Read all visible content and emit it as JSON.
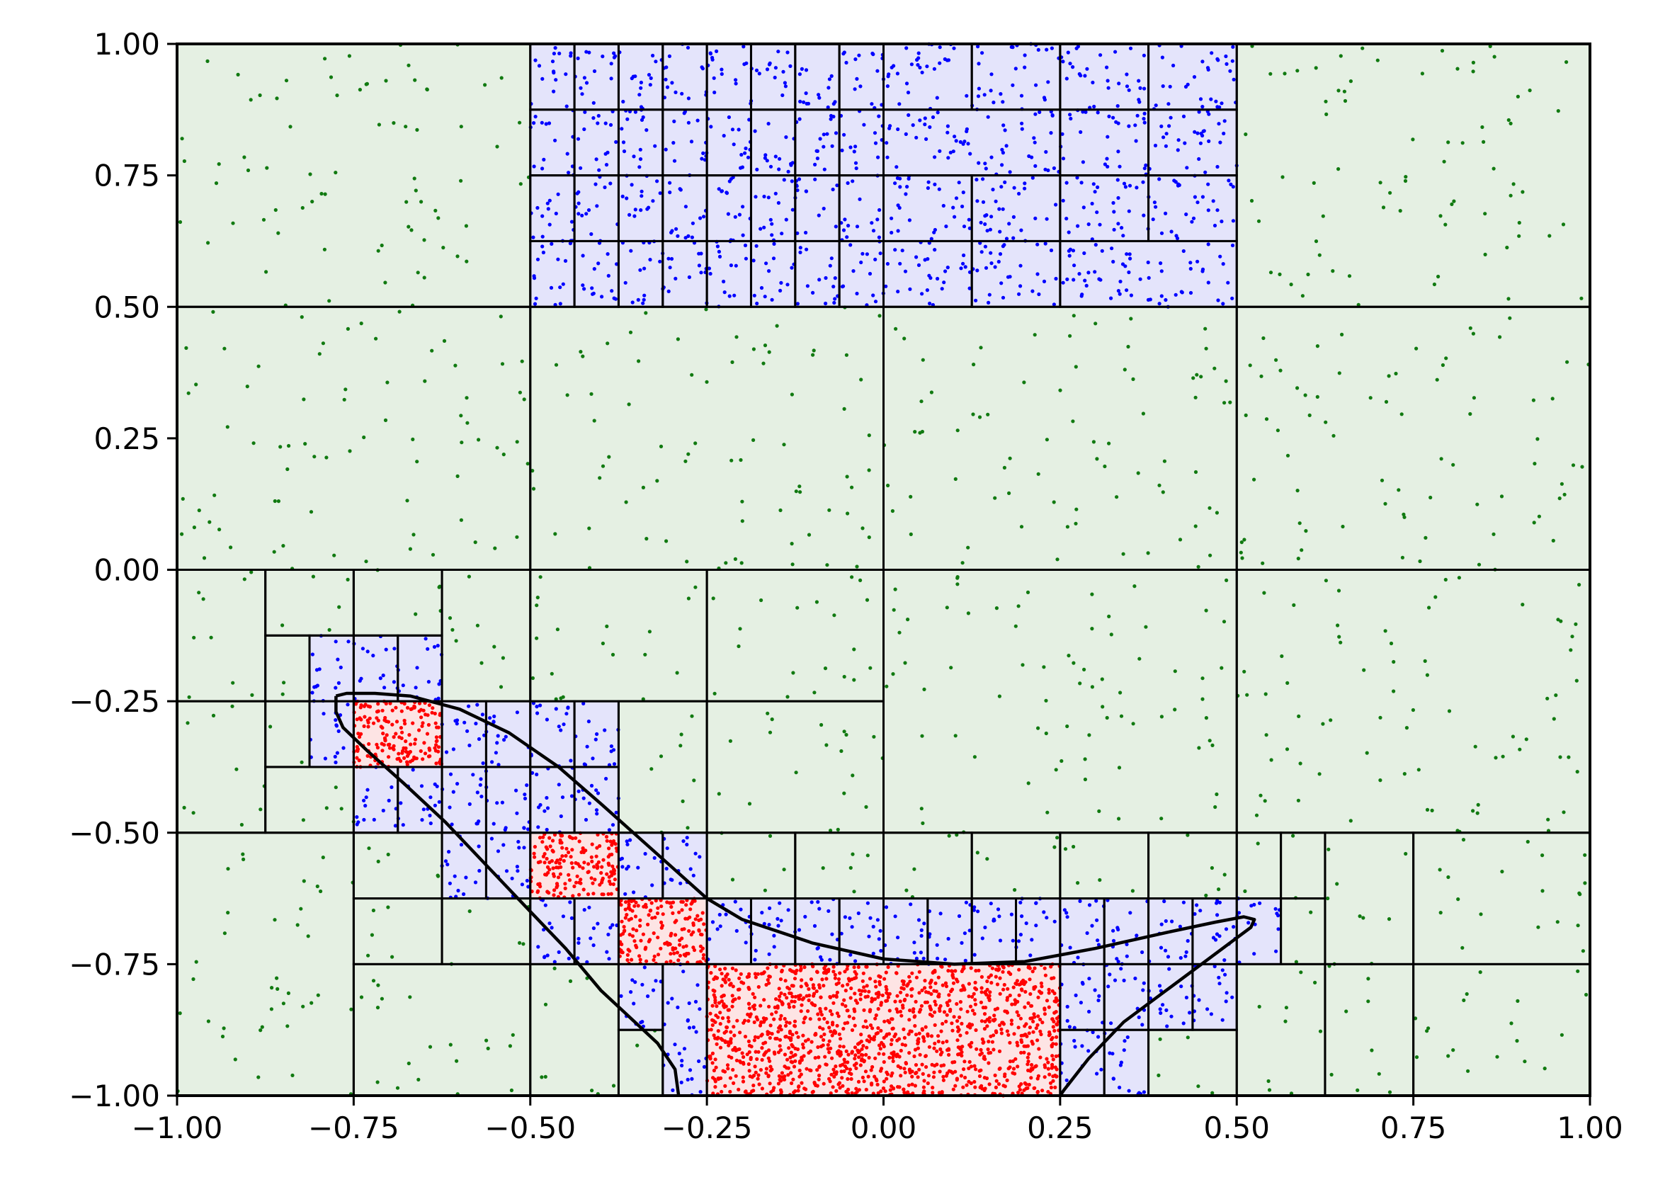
{
  "chart_data": {
    "type": "scatter",
    "title": "",
    "xlabel": "",
    "ylabel": "",
    "xlim": [
      -1.0,
      1.0
    ],
    "ylim": [
      -1.0,
      1.0
    ],
    "grid": false,
    "legend": "none",
    "x_ticks": [
      "−1.00",
      "−0.75",
      "−0.50",
      "−0.25",
      "0.00",
      "0.25",
      "0.50",
      "0.75",
      "1.00"
    ],
    "y_ticks": [
      "1.00",
      "0.75",
      "0.50",
      "0.25",
      "0.00",
      "−0.25",
      "−0.50",
      "−0.75",
      "−1.00"
    ],
    "x_tick_values": [
      -1.0,
      -0.75,
      -0.5,
      -0.25,
      0.0,
      0.25,
      0.5,
      0.75,
      1.0
    ],
    "y_tick_values": [
      1.0,
      0.75,
      0.5,
      0.25,
      0.0,
      -0.25,
      -0.5,
      -0.75,
      -1.0
    ],
    "colors": {
      "outside_cell_fill": "#e5f0e3",
      "boundary_cell_fill": "#e4e4fb",
      "inside_cell_fill": "#fde4e4",
      "outside_points": "#117a11",
      "boundary_points": "#0000ff",
      "inside_points": "#ff0000",
      "cell_edges": "#000000",
      "curve": "#000000"
    },
    "cells": {
      "outside": [
        [
          -1,
          0.5,
          -0.5,
          1
        ],
        [
          0.5,
          0.5,
          1,
          1
        ],
        [
          -1,
          0,
          -0.5,
          0.5
        ],
        [
          -0.5,
          0,
          0,
          0.5
        ],
        [
          0,
          0,
          0.5,
          0.5
        ],
        [
          0.5,
          0,
          1,
          0.5
        ],
        [
          0,
          -0.5,
          0.5,
          0
        ],
        [
          0.5,
          -0.5,
          1,
          0
        ],
        [
          -0.25,
          -0.25,
          0,
          0
        ],
        [
          -0.5,
          -0.25,
          -0.25,
          0
        ],
        [
          -1,
          -0.25,
          -0.875,
          0
        ],
        [
          -0.875,
          -0.125,
          -0.75,
          0
        ],
        [
          -0.75,
          -0.125,
          -0.625,
          0
        ],
        [
          -0.625,
          -0.25,
          -0.5,
          0
        ],
        [
          -0.875,
          -0.25,
          -0.8125,
          -0.125
        ],
        [
          -1,
          -0.5,
          -0.875,
          -0.25
        ],
        [
          -0.875,
          -0.375,
          -0.8125,
          -0.25
        ],
        [
          -0.875,
          -0.5,
          -0.75,
          -0.375
        ],
        [
          -0.375,
          -0.5,
          -0.25,
          -0.25
        ],
        [
          -0.25,
          -0.5,
          0,
          -0.25
        ],
        [
          -1,
          -1,
          -0.75,
          -0.5
        ],
        [
          -0.75,
          -0.625,
          -0.625,
          -0.5
        ],
        [
          -0.75,
          -0.75,
          -0.625,
          -0.625
        ],
        [
          -0.625,
          -0.75,
          -0.5,
          -0.625
        ],
        [
          -0.75,
          -1,
          -0.5,
          -0.75
        ],
        [
          -0.5,
          -1,
          -0.375,
          -0.75
        ],
        [
          -0.375,
          -1,
          -0.3125,
          -0.875
        ],
        [
          -0.25,
          -0.625,
          -0.125,
          -0.5
        ],
        [
          -0.125,
          -0.625,
          0,
          -0.5
        ],
        [
          0,
          -0.625,
          0.125,
          -0.5
        ],
        [
          0.125,
          -0.625,
          0.25,
          -0.5
        ],
        [
          0.25,
          -0.625,
          0.375,
          -0.5
        ],
        [
          0.375,
          -0.625,
          0.5,
          -0.5
        ],
        [
          0.5,
          -0.625,
          0.5625,
          -0.5
        ],
        [
          0.5625,
          -0.625,
          0.625,
          -0.5
        ],
        [
          0.625,
          -0.75,
          0.75,
          -0.5
        ],
        [
          0.75,
          -0.75,
          1,
          -0.5
        ],
        [
          0.5625,
          -0.75,
          0.625,
          -0.625
        ],
        [
          0.375,
          -1,
          0.5,
          -0.875
        ],
        [
          0.5,
          -1,
          0.625,
          -0.75
        ],
        [
          0.625,
          -1,
          0.75,
          -0.75
        ],
        [
          0.75,
          -1,
          1,
          -0.75
        ]
      ],
      "boundary": [
        [
          -0.5,
          0.875,
          -0.4375,
          1
        ],
        [
          -0.4375,
          0.875,
          -0.375,
          1
        ],
        [
          -0.375,
          0.875,
          -0.3125,
          1
        ],
        [
          -0.3125,
          0.875,
          -0.25,
          1
        ],
        [
          -0.25,
          0.875,
          -0.1875,
          1
        ],
        [
          -0.1875,
          0.875,
          -0.125,
          1
        ],
        [
          -0.125,
          0.875,
          -0.0625,
          1
        ],
        [
          -0.0625,
          0.875,
          0,
          1
        ],
        [
          0,
          0.875,
          0.125,
          1
        ],
        [
          0.125,
          0.875,
          0.25,
          1
        ],
        [
          0.25,
          0.875,
          0.375,
          1
        ],
        [
          0.375,
          0.875,
          0.5,
          1
        ],
        [
          -0.5,
          0.75,
          -0.4375,
          0.875
        ],
        [
          -0.4375,
          0.75,
          -0.375,
          0.875
        ],
        [
          -0.375,
          0.75,
          -0.3125,
          0.875
        ],
        [
          -0.3125,
          0.75,
          -0.25,
          0.875
        ],
        [
          -0.25,
          0.75,
          -0.1875,
          0.875
        ],
        [
          -0.1875,
          0.75,
          -0.125,
          0.875
        ],
        [
          -0.125,
          0.75,
          -0.0625,
          0.875
        ],
        [
          -0.0625,
          0.75,
          0,
          0.875
        ],
        [
          0,
          0.75,
          0.25,
          0.875
        ],
        [
          0.25,
          0.75,
          0.375,
          0.875
        ],
        [
          0.375,
          0.75,
          0.5,
          0.875
        ],
        [
          -0.5,
          0.625,
          -0.4375,
          0.75
        ],
        [
          -0.4375,
          0.625,
          -0.375,
          0.75
        ],
        [
          -0.375,
          0.625,
          -0.3125,
          0.75
        ],
        [
          -0.3125,
          0.625,
          -0.25,
          0.75
        ],
        [
          -0.25,
          0.625,
          -0.1875,
          0.75
        ],
        [
          -0.1875,
          0.625,
          -0.125,
          0.75
        ],
        [
          -0.125,
          0.625,
          -0.0625,
          0.75
        ],
        [
          -0.0625,
          0.625,
          0,
          0.75
        ],
        [
          0,
          0.625,
          0.125,
          0.75
        ],
        [
          0.125,
          0.625,
          0.25,
          0.75
        ],
        [
          0.25,
          0.625,
          0.375,
          0.75
        ],
        [
          0.375,
          0.625,
          0.5,
          0.75
        ],
        [
          -0.5,
          0.5,
          -0.4375,
          0.625
        ],
        [
          -0.4375,
          0.5,
          -0.375,
          0.625
        ],
        [
          -0.375,
          0.5,
          -0.3125,
          0.625
        ],
        [
          -0.3125,
          0.5,
          -0.25,
          0.625
        ],
        [
          -0.25,
          0.5,
          -0.1875,
          0.625
        ],
        [
          -0.1875,
          0.5,
          -0.125,
          0.625
        ],
        [
          -0.125,
          0.5,
          -0.0625,
          0.625
        ],
        [
          -0.0625,
          0.5,
          0,
          0.625
        ],
        [
          0,
          0.5,
          0.125,
          0.625
        ],
        [
          0.125,
          0.5,
          0.25,
          0.625
        ],
        [
          0.25,
          0.5,
          0.5,
          0.625
        ],
        [
          -0.8125,
          -0.25,
          -0.75,
          -0.125
        ],
        [
          -0.75,
          -0.25,
          -0.6875,
          -0.125
        ],
        [
          -0.6875,
          -0.25,
          -0.625,
          -0.125
        ],
        [
          -0.8125,
          -0.375,
          -0.75,
          -0.25
        ],
        [
          -0.625,
          -0.375,
          -0.5625,
          -0.25
        ],
        [
          -0.5625,
          -0.375,
          -0.5,
          -0.25
        ],
        [
          -0.5,
          -0.375,
          -0.4375,
          -0.25
        ],
        [
          -0.4375,
          -0.375,
          -0.375,
          -0.25
        ],
        [
          -0.75,
          -0.5,
          -0.6875,
          -0.375
        ],
        [
          -0.6875,
          -0.5,
          -0.625,
          -0.375
        ],
        [
          -0.625,
          -0.5,
          -0.5625,
          -0.375
        ],
        [
          -0.5625,
          -0.5,
          -0.5,
          -0.375
        ],
        [
          -0.5,
          -0.5,
          -0.4375,
          -0.375
        ],
        [
          -0.4375,
          -0.5,
          -0.375,
          -0.375
        ],
        [
          -0.625,
          -0.625,
          -0.5625,
          -0.5
        ],
        [
          -0.5625,
          -0.625,
          -0.5,
          -0.5
        ],
        [
          -0.375,
          -0.625,
          -0.3125,
          -0.5
        ],
        [
          -0.3125,
          -0.625,
          -0.25,
          -0.5
        ],
        [
          -0.5,
          -0.75,
          -0.4375,
          -0.625
        ],
        [
          -0.4375,
          -0.75,
          -0.375,
          -0.625
        ],
        [
          -0.25,
          -0.75,
          -0.1875,
          -0.625
        ],
        [
          -0.1875,
          -0.75,
          -0.125,
          -0.625
        ],
        [
          -0.125,
          -0.75,
          -0.0625,
          -0.625
        ],
        [
          -0.0625,
          -0.75,
          0,
          -0.625
        ],
        [
          0,
          -0.75,
          0.0625,
          -0.625
        ],
        [
          0.0625,
          -0.75,
          0.125,
          -0.625
        ],
        [
          0.125,
          -0.75,
          0.1875,
          -0.625
        ],
        [
          0.1875,
          -0.75,
          0.25,
          -0.625
        ],
        [
          0.25,
          -0.75,
          0.3125,
          -0.625
        ],
        [
          0.3125,
          -0.75,
          0.375,
          -0.625
        ],
        [
          0.375,
          -0.75,
          0.4375,
          -0.625
        ],
        [
          0.4375,
          -0.75,
          0.5,
          -0.625
        ],
        [
          0.5,
          -0.75,
          0.5625,
          -0.625
        ],
        [
          -0.375,
          -0.875,
          -0.3125,
          -0.75
        ],
        [
          -0.3125,
          -1,
          -0.25,
          -0.75
        ],
        [
          0.25,
          -0.875,
          0.3125,
          -0.75
        ],
        [
          0.3125,
          -0.875,
          0.375,
          -0.75
        ],
        [
          0.375,
          -0.875,
          0.4375,
          -0.75
        ],
        [
          0.4375,
          -0.875,
          0.5,
          -0.75
        ],
        [
          0.25,
          -1,
          0.3125,
          -0.875
        ],
        [
          0.3125,
          -1,
          0.375,
          -0.875
        ]
      ],
      "inside": [
        [
          -0.75,
          -0.375,
          -0.625,
          -0.25
        ],
        [
          -0.5,
          -0.625,
          -0.375,
          -0.5
        ],
        [
          -0.375,
          -0.75,
          -0.25,
          -0.625
        ],
        [
          -0.25,
          -1,
          0.25,
          -0.75
        ]
      ]
    },
    "curve": [
      [
        -0.775,
        -0.24
      ],
      [
        -0.76,
        -0.235
      ],
      [
        -0.72,
        -0.235
      ],
      [
        -0.67,
        -0.24
      ],
      [
        -0.6,
        -0.265
      ],
      [
        -0.53,
        -0.31
      ],
      [
        -0.46,
        -0.375
      ],
      [
        -0.4,
        -0.445
      ],
      [
        -0.35,
        -0.505
      ],
      [
        -0.3,
        -0.565
      ],
      [
        -0.25,
        -0.625
      ],
      [
        -0.2,
        -0.665
      ],
      [
        -0.1,
        -0.71
      ],
      [
        0.0,
        -0.74
      ],
      [
        0.1,
        -0.75
      ],
      [
        0.2,
        -0.745
      ],
      [
        0.3,
        -0.72
      ],
      [
        0.4,
        -0.69
      ],
      [
        0.47,
        -0.67
      ],
      [
        0.51,
        -0.66
      ],
      [
        0.525,
        -0.665
      ],
      [
        0.52,
        -0.68
      ],
      [
        0.49,
        -0.71
      ],
      [
        0.45,
        -0.75
      ],
      [
        0.4,
        -0.8
      ],
      [
        0.34,
        -0.86
      ],
      [
        0.29,
        -0.93
      ],
      [
        0.255,
        -0.99
      ],
      [
        0.25,
        -1.0
      ]
    ],
    "curve_left": [
      [
        -0.29,
        -1.0
      ],
      [
        -0.295,
        -0.95
      ],
      [
        -0.32,
        -0.9
      ],
      [
        -0.36,
        -0.85
      ],
      [
        -0.4,
        -0.8
      ],
      [
        -0.45,
        -0.72
      ],
      [
        -0.5,
        -0.65
      ],
      [
        -0.56,
        -0.565
      ],
      [
        -0.62,
        -0.48
      ],
      [
        -0.68,
        -0.405
      ],
      [
        -0.73,
        -0.345
      ],
      [
        -0.765,
        -0.3
      ],
      [
        -0.775,
        -0.27
      ],
      [
        -0.775,
        -0.24
      ]
    ],
    "points": {
      "outside_count": 900,
      "boundary_count": 1700,
      "inside_count": 1900
    }
  }
}
